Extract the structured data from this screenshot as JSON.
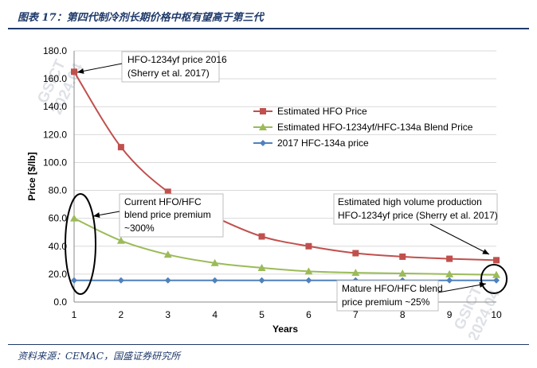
{
  "figure": {
    "title": "图表 17：第四代制冷剂长期价格中枢有望高于第三代",
    "source": "资料来源：CEMAC，国盛证券研究所",
    "watermark": [
      "GSICT",
      "2024.04"
    ]
  },
  "chart_data": {
    "type": "line",
    "x": [
      1,
      2,
      3,
      4,
      5,
      6,
      7,
      8,
      9,
      10
    ],
    "xlabel": "Years",
    "ylabel": "Price [$/lb]",
    "xlim": [
      1,
      10
    ],
    "ylim": [
      0,
      180
    ],
    "yticks": [
      "0.0",
      "20.0",
      "40.0",
      "60.0",
      "80.0",
      "100.0",
      "120.0",
      "140.0",
      "160.0",
      "180.0"
    ],
    "xticks": [
      "1",
      "2",
      "3",
      "4",
      "5",
      "6",
      "7",
      "8",
      "9",
      "10"
    ],
    "grid": "horizontal",
    "legend_position": "upper-right",
    "series": [
      {
        "name": "Estimated HFO Price",
        "color": "#c0504d",
        "marker": "square",
        "values": [
          165,
          111,
          79,
          61,
          47,
          40,
          35,
          32.5,
          31,
          30
        ]
      },
      {
        "name": "Estimated HFO-1234yf/HFC-134a  Blend Price",
        "color": "#9bbb59",
        "marker": "triangle",
        "values": [
          60,
          44,
          34,
          28,
          24.5,
          22,
          21,
          20.5,
          20,
          19.5
        ]
      },
      {
        "name": "2017 HFC-134a price",
        "color": "#4f81bd",
        "marker": "diamond",
        "values": [
          15.5,
          15.5,
          15.5,
          15.5,
          15.5,
          15.5,
          15.5,
          15.5,
          15.5,
          15.5
        ]
      }
    ],
    "annotations": [
      {
        "lines": [
          "HFO-1234yf price 2016",
          "(Sherry et al. 2017)"
        ]
      },
      {
        "lines": [
          "Current HFO/HFC",
          "blend price premium",
          "~300%"
        ]
      },
      {
        "lines": [
          "Estimated high volume production",
          "HFO-1234yf price (Sherry et al. 2017)"
        ]
      },
      {
        "lines": [
          "Mature HFO/HFC blend",
          "price premium ~25%"
        ]
      }
    ]
  }
}
